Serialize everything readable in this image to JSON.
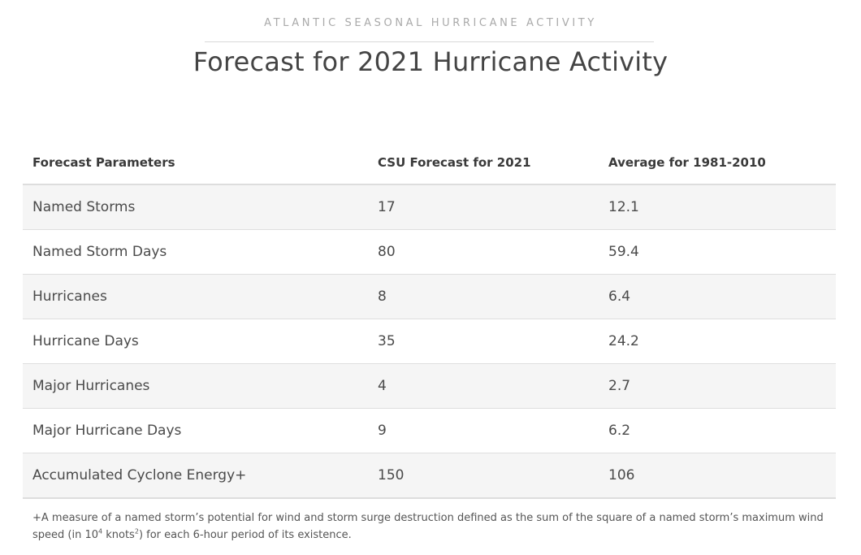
{
  "header": {
    "eyebrow": "ATLANTIC SEASONAL HURRICANE ACTIVITY",
    "title": "Forecast for 2021 Hurricane Activity"
  },
  "table": {
    "columns": [
      "Forecast Parameters",
      "CSU Forecast for 2021",
      "Average for 1981-2010"
    ],
    "rows": [
      [
        "Named Storms",
        "17",
        "12.1"
      ],
      [
        "Named Storm Days",
        "80",
        "59.4"
      ],
      [
        "Hurricanes",
        "8",
        "6.4"
      ],
      [
        "Hurricane Days",
        "35",
        "24.2"
      ],
      [
        "Major Hurricanes",
        "4",
        "2.7"
      ],
      [
        "Major Hurricane Days",
        "9",
        "6.2"
      ],
      [
        "Accumulated Cyclone Energy+",
        "150",
        "106"
      ]
    ]
  },
  "footnote": {
    "part1": "+A measure of a named storm’s potential for wind and storm surge destruction defined as the sum of the square of a named storm’s maximum wind speed (in 10",
    "sup1": "4",
    "part2": " knots",
    "sup2": "2",
    "part3": ") for each 6-hour period of its existence."
  }
}
